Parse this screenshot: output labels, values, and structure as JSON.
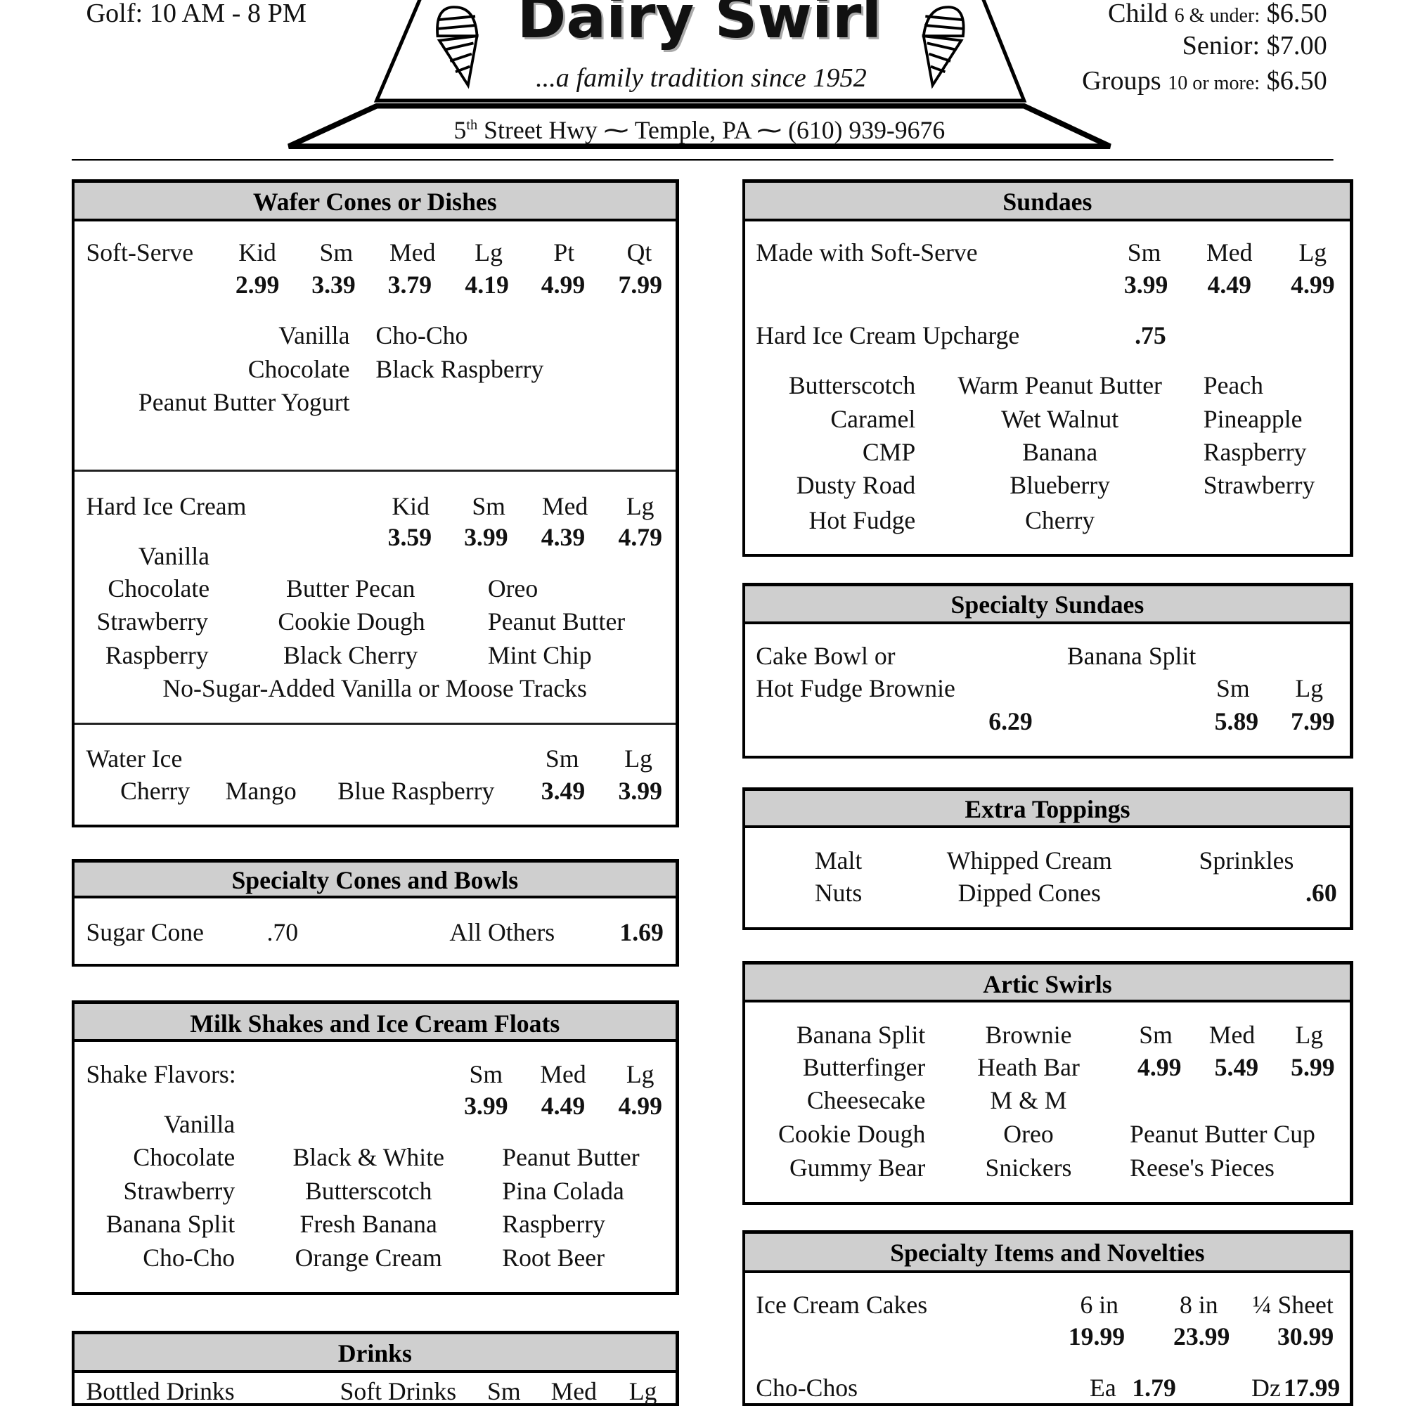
{
  "header": {
    "hours": "Golf:   10 AM - 8 PM",
    "logo_name": "Dairy Swirl",
    "tagline": "...a family tradition since 1952",
    "address_street_num": "5",
    "address_street_sup": "th",
    "address_street": " Street Hwy",
    "address_city": "Temple, PA",
    "address_phone": "(610) 939-9676",
    "prices": [
      {
        "label": "Child",
        "small": "6 & under:",
        "price": "$6.50"
      },
      {
        "label": "Senior:",
        "small": "",
        "price": "$7.00"
      },
      {
        "label": "Groups",
        "small": "10 or more:",
        "price": "$6.50"
      }
    ]
  },
  "wafer": {
    "title": "Wafer Cones or Dishes",
    "soft_label": "Soft-Serve",
    "soft_sizes": [
      "Kid",
      "Sm",
      "Med",
      "Lg",
      "Pt",
      "Qt"
    ],
    "soft_prices": [
      "2.99",
      "3.39",
      "3.79",
      "4.19",
      "4.99",
      "7.99"
    ],
    "soft_flavors_left": [
      "Vanilla",
      "Chocolate",
      "Peanut Butter Yogurt"
    ],
    "soft_flavors_right": [
      "Cho-Cho",
      "Black Raspberry"
    ],
    "hard_label": "Hard Ice Cream",
    "hard_sizes": [
      "Kid",
      "Sm",
      "Med",
      "Lg"
    ],
    "hard_prices": [
      "3.59",
      "3.99",
      "4.39",
      "4.79"
    ],
    "hard_col1": [
      "Vanilla",
      "Chocolate",
      "Strawberry",
      "Raspberry"
    ],
    "hard_col2": [
      "Butter Pecan",
      "Cookie Dough",
      "Black Cherry"
    ],
    "hard_col3": [
      "Oreo",
      "Peanut Butter",
      "Mint Chip"
    ],
    "hard_note": "No-Sugar-Added Vanilla or Moose Tracks",
    "water_label": "Water Ice",
    "water_sizes": [
      "Sm",
      "Lg"
    ],
    "water_prices": [
      "3.49",
      "3.99"
    ],
    "water_flavors": [
      "Cherry",
      "Mango",
      "Blue Raspberry"
    ]
  },
  "specialty_cones": {
    "title": "Specialty Cones and Bowls",
    "sugar_label": "Sugar Cone",
    "sugar_price": ".70",
    "others_label": "All Others",
    "others_price": "1.69"
  },
  "shakes": {
    "title": "Milk Shakes and Ice Cream Floats",
    "label": "Shake Flavors:",
    "sizes": [
      "Sm",
      "Med",
      "Lg"
    ],
    "prices": [
      "3.99",
      "4.49",
      "4.99"
    ],
    "col1": [
      "Vanilla",
      "Chocolate",
      "Strawberry",
      "Banana Split",
      "Cho-Cho"
    ],
    "col2": [
      "Black & White",
      "Butterscotch",
      "Fresh Banana",
      "Orange Cream"
    ],
    "col3": [
      "Peanut Butter",
      "Pina Colada",
      "Raspberry",
      "Root Beer"
    ]
  },
  "drinks": {
    "title": "Drinks",
    "bottled": "Bottled Drinks",
    "soft": "Soft Drinks",
    "sizes": [
      "Sm",
      "Med",
      "Lg"
    ]
  },
  "sundaes": {
    "title": "Sundaes",
    "label": "Made with Soft-Serve",
    "sizes": [
      "Sm",
      "Med",
      "Lg"
    ],
    "prices": [
      "3.99",
      "4.49",
      "4.99"
    ],
    "upcharge_label": "Hard Ice Cream Upcharge",
    "upcharge_price": ".75",
    "col1": [
      "Butterscotch",
      "Caramel",
      "CMP",
      "Dusty Road",
      "Hot Fudge"
    ],
    "col2": [
      "Warm Peanut Butter",
      "Wet Walnut",
      "Banana",
      "Blueberry",
      "Cherry"
    ],
    "col3": [
      "Peach",
      "Pineapple",
      "Raspberry",
      "Strawberry"
    ]
  },
  "specialty_sundaes": {
    "title": "Specialty Sundaes",
    "cake_line1": "Cake Bowl or",
    "cake_line2": "Hot Fudge Brownie",
    "cake_price": "6.29",
    "split_label": "Banana Split",
    "split_sizes": [
      "Sm",
      "Lg"
    ],
    "split_prices": [
      "5.89",
      "7.99"
    ]
  },
  "extra_toppings": {
    "title": "Extra Toppings",
    "col1": [
      "Malt",
      "Nuts"
    ],
    "col2": [
      "Whipped Cream",
      "Dipped Cones"
    ],
    "col3": "Sprinkles",
    "price": ".60"
  },
  "artic": {
    "title": "Artic Swirls",
    "col1": [
      "Banana Split",
      "Butterfinger",
      "Cheesecake",
      "Cookie Dough",
      "Gummy Bear"
    ],
    "col2": [
      "Brownie",
      "Heath Bar",
      "M & M",
      "Oreo",
      "Snickers"
    ],
    "col3": [
      "Peanut Butter Cup",
      "Reese's Pieces"
    ],
    "sizes": [
      "Sm",
      "Med",
      "Lg"
    ],
    "prices": [
      "4.99",
      "5.49",
      "5.99"
    ]
  },
  "specialty_items": {
    "title": "Specialty Items and Novelties",
    "cakes_label": "Ice Cream Cakes",
    "cake_sizes": [
      "6 in",
      "8 in",
      "¼ Sheet"
    ],
    "cake_prices": [
      "19.99",
      "23.99",
      "30.99"
    ],
    "chochos_label": "Cho-Chos",
    "each_label": "Ea",
    "each_price": "1.79",
    "dozen_label": "Dz",
    "dozen_price": "17.99"
  }
}
